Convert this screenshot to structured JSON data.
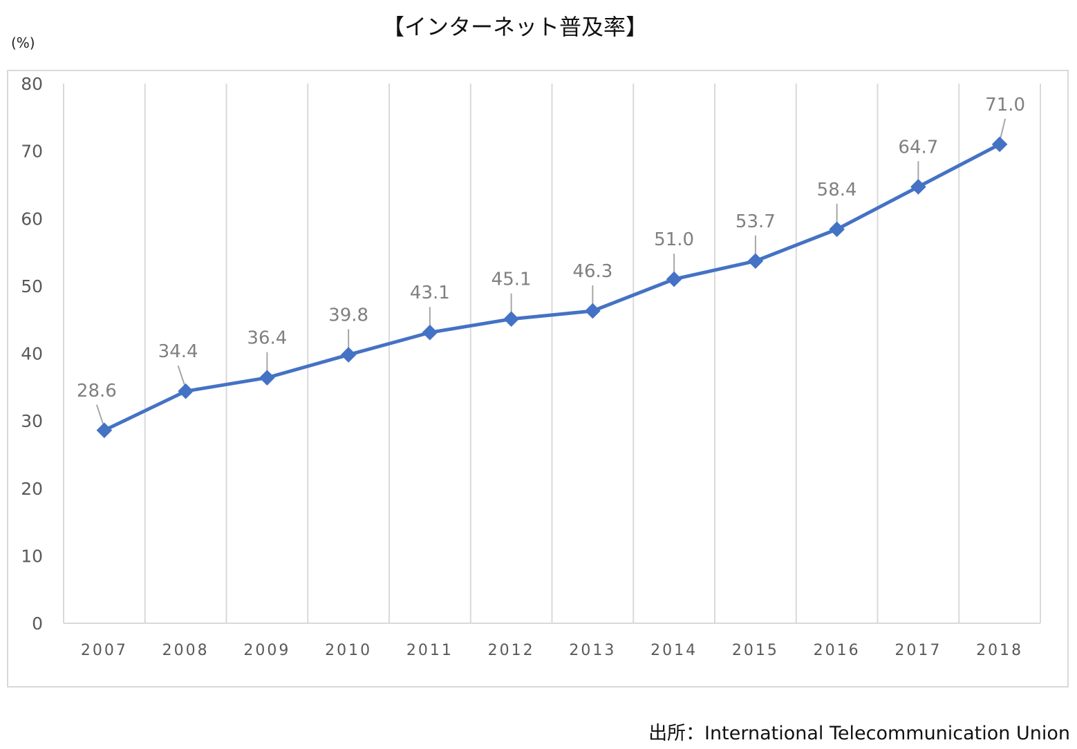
{
  "chart_data": {
    "type": "line",
    "title": "【インターネット普及率】",
    "ylabel": "(%)",
    "xlabel": "",
    "categories": [
      "2007",
      "2008",
      "2009",
      "2010",
      "2011",
      "2012",
      "2013",
      "2014",
      "2015",
      "2016",
      "2017",
      "2018"
    ],
    "series": [
      {
        "values": [
          28.6,
          34.4,
          36.4,
          39.8,
          43.1,
          45.1,
          46.3,
          51.0,
          53.7,
          58.4,
          64.7,
          71.0
        ]
      }
    ],
    "ylim": [
      0,
      80
    ],
    "yticks": [
      0,
      10,
      20,
      30,
      40,
      50,
      60,
      70,
      80
    ],
    "grid": "vertical",
    "legend": "none",
    "marker": "diamond",
    "color": "#4472C4",
    "data_labels": true
  },
  "source": "出所：International Telecommunication Union"
}
